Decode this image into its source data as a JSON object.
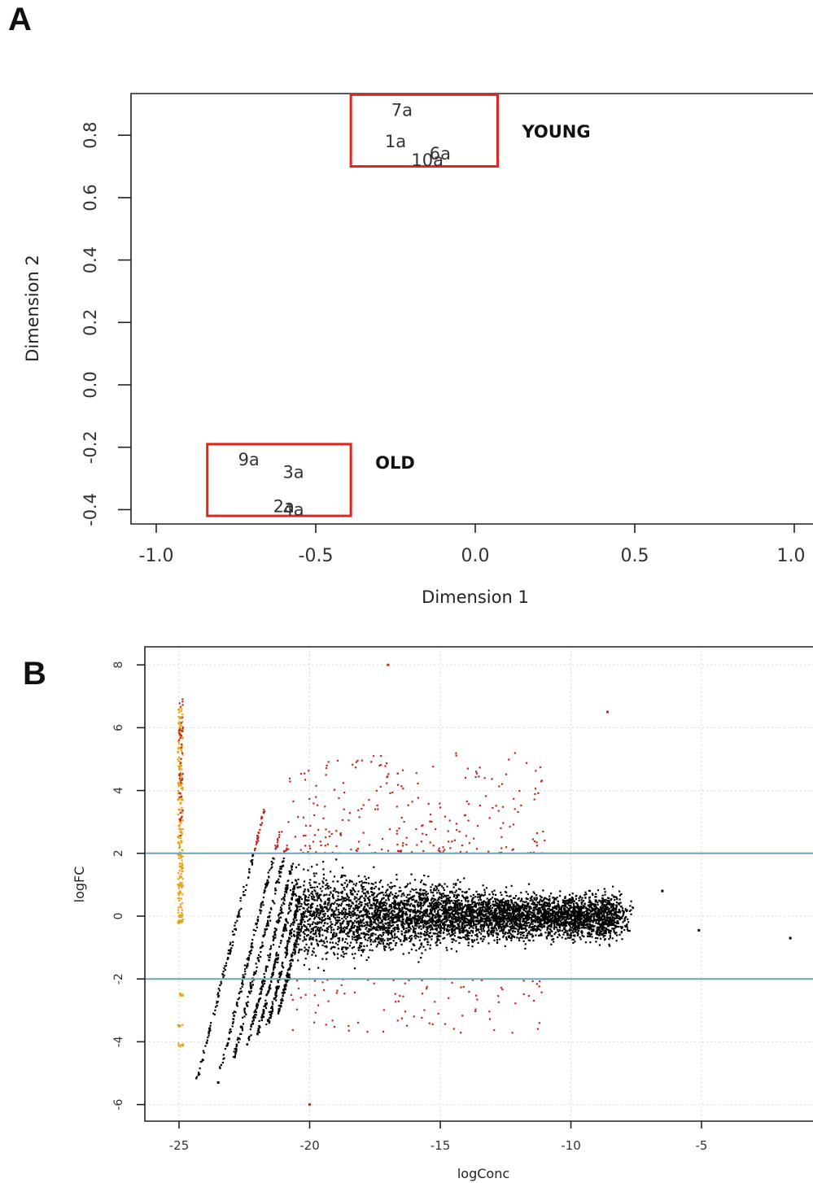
{
  "panels": {
    "a": "A",
    "b": "B"
  },
  "chart_data": [
    {
      "type": "scatter",
      "title": "",
      "xlabel": "Dimension 1",
      "ylabel": "Dimension 2",
      "xlim": [
        -1.08,
        1.0
      ],
      "ylim": [
        -0.44,
        0.93
      ],
      "xticks": [
        "-1.0",
        "-0.5",
        "0.0",
        "0.5",
        "1.0"
      ],
      "yticks": [
        "-0.4",
        "-0.2",
        "0.0",
        "0.2",
        "0.4",
        "0.6",
        "0.8"
      ],
      "points": [
        {
          "label": "7a",
          "x": -0.23,
          "y": 0.88
        },
        {
          "label": "1a",
          "x": -0.25,
          "y": 0.78
        },
        {
          "label": "6a",
          "x": -0.11,
          "y": 0.74
        },
        {
          "label": "10a",
          "x": -0.15,
          "y": 0.72
        },
        {
          "label": "9a",
          "x": -0.71,
          "y": -0.24
        },
        {
          "label": "3a",
          "x": -0.57,
          "y": -0.28
        },
        {
          "label": "2a",
          "x": -0.6,
          "y": -0.39
        },
        {
          "label": "4a",
          "x": -0.57,
          "y": -0.4
        }
      ],
      "groups": [
        {
          "name": "YOUNG",
          "xrange": [
            -0.39,
            0.07
          ],
          "yrange": [
            0.7,
            0.93
          ]
        },
        {
          "name": "OLD",
          "xrange": [
            -0.84,
            -0.39
          ],
          "yrange": [
            -0.42,
            -0.19
          ]
        }
      ],
      "box_color": "#e0241f"
    },
    {
      "type": "scatter",
      "title": "",
      "xlabel": "logConc",
      "ylabel": "logFC",
      "xlim": [
        -26.2,
        -1.3
      ],
      "ylim": [
        -6.6,
        8.6
      ],
      "xticks": [
        "-25",
        "-20",
        "-15",
        "-10",
        "-5"
      ],
      "yticks": [
        "-6",
        "-4",
        "-2",
        "0",
        "2",
        "4",
        "6",
        "8"
      ],
      "grid": true,
      "hlines": [
        2,
        -2
      ],
      "hline_color": "#6fa3bd",
      "colors": {
        "not_significant": "#000000",
        "significant": "#c0281e",
        "zero_count": "#e8a317"
      },
      "notable_points": [
        {
          "x": -17,
          "y": 8.0,
          "group": "significant"
        },
        {
          "x": -20.0,
          "y": -6.0,
          "group": "significant"
        },
        {
          "x": -8.6,
          "y": 6.5,
          "group": "significant"
        },
        {
          "x": -5.1,
          "y": -0.45,
          "group": "not_significant"
        },
        {
          "x": -1.6,
          "y": -0.7,
          "group": "not_significant"
        },
        {
          "x": -6.5,
          "y": 0.8,
          "group": "not_significant"
        },
        {
          "x": -23.5,
          "y": -5.3,
          "group": "not_significant"
        }
      ]
    }
  ]
}
